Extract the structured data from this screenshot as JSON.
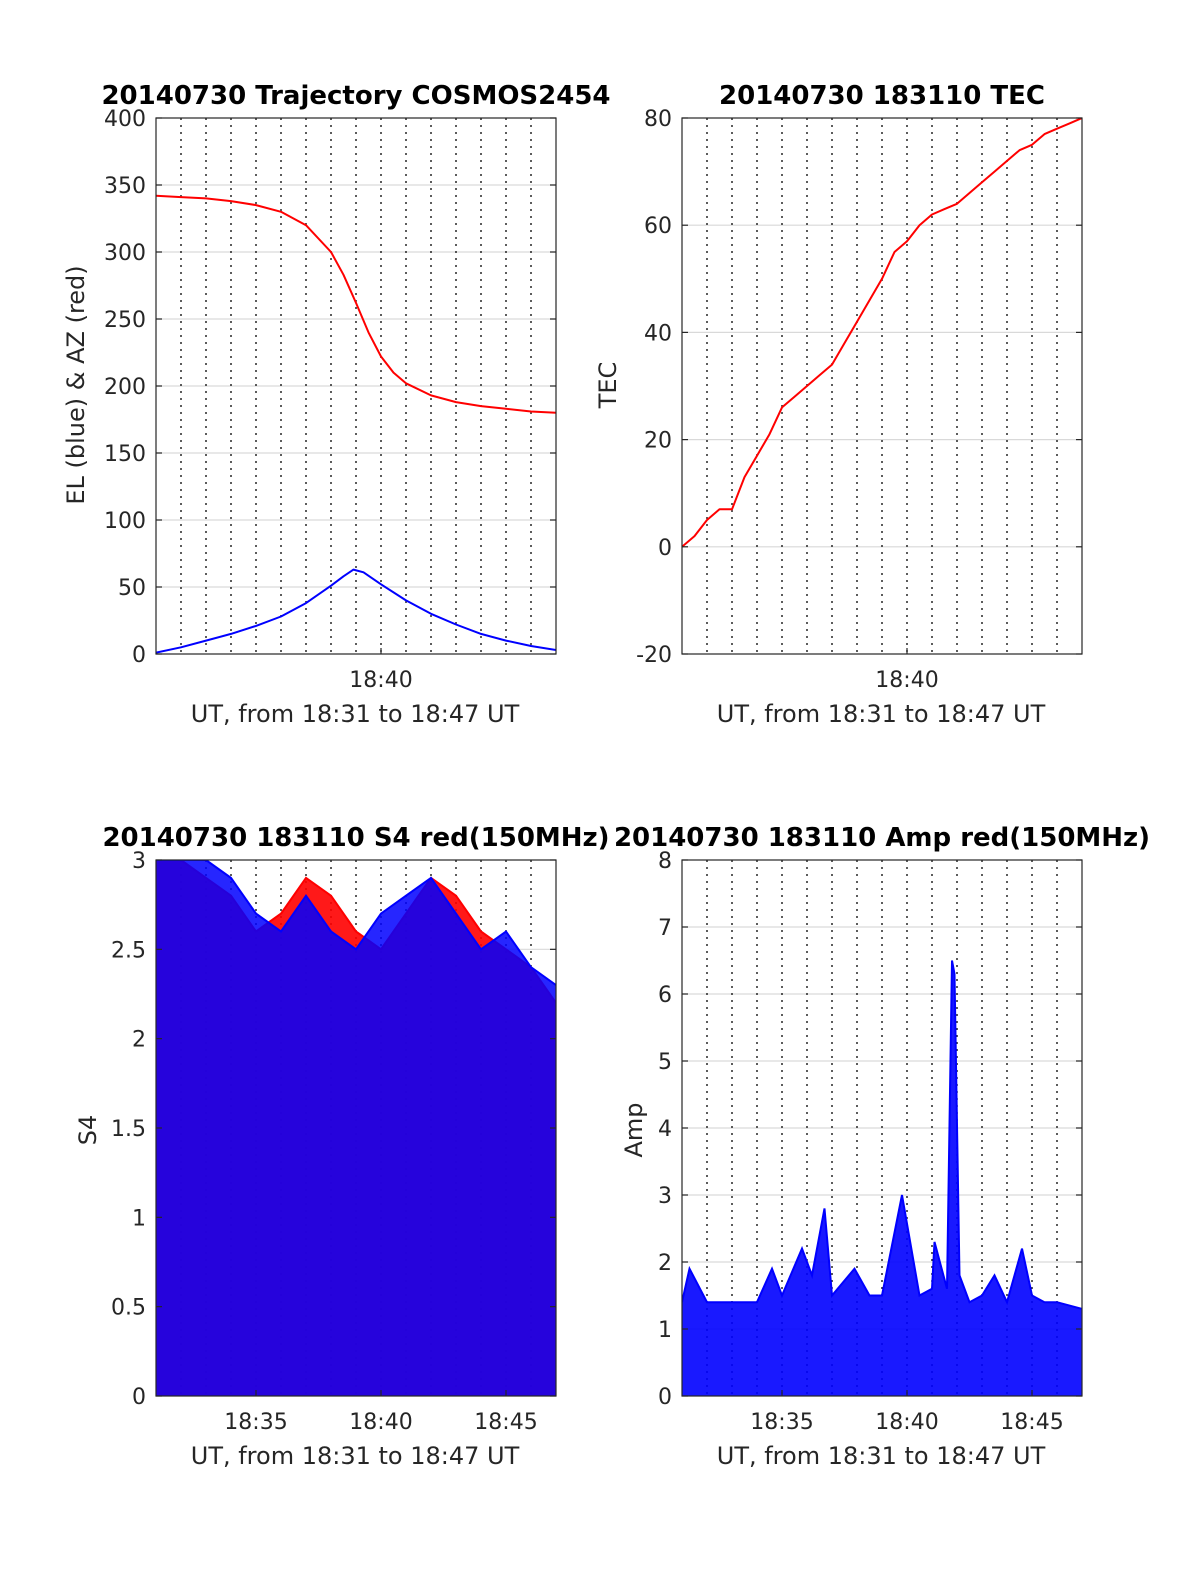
{
  "chart_data": [
    {
      "type": "line",
      "title": "20140730 Trajectory COSMOS2454",
      "xlabel": "UT, from 18:31 to 18:47 UT",
      "ylabel": "EL (blue) & AZ (red)",
      "xlim": [
        31.0,
        47.0
      ],
      "ylim": [
        0,
        400
      ],
      "yticks": [
        0,
        50,
        100,
        150,
        200,
        250,
        300,
        350,
        400
      ],
      "xticks": [
        {
          "value": 40,
          "label": "18:40"
        }
      ],
      "vgrid_minutes": [
        32,
        33,
        34,
        35,
        36,
        37,
        38,
        39,
        40,
        41,
        42,
        43,
        44,
        45,
        46
      ],
      "grid": true,
      "series": [
        {
          "name": "AZ",
          "color": "#ff0000",
          "x": [
            31.0,
            32.0,
            33.0,
            34.0,
            35.0,
            36.0,
            37.0,
            38.0,
            38.5,
            39.0,
            39.5,
            40.0,
            40.5,
            41.0,
            42.0,
            43.0,
            44.0,
            45.0,
            46.0,
            47.0
          ],
          "y": [
            342,
            341,
            340,
            338,
            335,
            330,
            320,
            300,
            283,
            262,
            240,
            222,
            210,
            202,
            193,
            188,
            185,
            183,
            181,
            180
          ]
        },
        {
          "name": "EL",
          "color": "#0000ff",
          "x": [
            31.0,
            32.0,
            33.0,
            34.0,
            35.0,
            36.0,
            37.0,
            38.0,
            38.5,
            38.9,
            39.3,
            40.0,
            41.0,
            42.0,
            43.0,
            44.0,
            45.0,
            46.0,
            47.0
          ],
          "y": [
            1,
            5,
            10,
            15,
            21,
            28,
            38,
            51,
            58,
            63,
            61,
            52,
            40,
            30,
            22,
            15,
            10,
            6,
            3
          ]
        }
      ]
    },
    {
      "type": "line",
      "title": "20140730 183110 TEC",
      "xlabel": "UT, from 18:31 to 18:47 UT",
      "ylabel": "TEC",
      "xlim": [
        31.0,
        47.0
      ],
      "ylim": [
        -20,
        80
      ],
      "yticks": [
        -20,
        0,
        20,
        40,
        60,
        80
      ],
      "xticks": [
        {
          "value": 40,
          "label": "18:40"
        }
      ],
      "vgrid_minutes": [
        32,
        33,
        34,
        35,
        36,
        37,
        38,
        39,
        40,
        41,
        42,
        43,
        44,
        45,
        46
      ],
      "grid": true,
      "series": [
        {
          "name": "TEC",
          "color": "#ff0000",
          "x": [
            31.0,
            31.5,
            32.0,
            32.5,
            33.0,
            33.5,
            34.0,
            34.5,
            35.0,
            35.5,
            36.0,
            36.5,
            37.0,
            37.5,
            38.0,
            38.5,
            39.0,
            39.5,
            40.0,
            40.5,
            41.0,
            41.5,
            42.0,
            42.5,
            43.0,
            43.5,
            44.0,
            44.5,
            45.0,
            45.5,
            46.0,
            46.5,
            47.0
          ],
          "y": [
            0,
            2,
            5,
            7,
            7,
            13,
            17,
            21,
            26,
            28,
            30,
            32,
            34,
            38,
            42,
            46,
            50,
            55,
            57,
            60,
            62,
            63,
            64,
            66,
            68,
            70,
            72,
            74,
            75,
            77,
            78,
            79,
            80
          ]
        }
      ]
    },
    {
      "type": "line",
      "title": "20140730 183110 S4 red(150MHz)",
      "xlabel": "UT, from 18:31 to 18:47 UT",
      "ylabel": "S4",
      "xlim": [
        31.0,
        47.0
      ],
      "ylim": [
        0,
        3
      ],
      "yticks": [
        0,
        0.5,
        1,
        1.5,
        2,
        2.5,
        3
      ],
      "xticks": [
        {
          "value": 35,
          "label": "18:35"
        },
        {
          "value": 40,
          "label": "18:40"
        },
        {
          "value": 45,
          "label": "18:45"
        }
      ],
      "vgrid_minutes": [
        32,
        33,
        34,
        35,
        36,
        37,
        38,
        39,
        40,
        41,
        42,
        43,
        44,
        45,
        46
      ],
      "grid": true,
      "series": [
        {
          "name": "S4 red",
          "color": "#ff0000",
          "x": [
            31.0,
            32.0,
            33.0,
            34.0,
            35.0,
            36.0,
            37.0,
            38.0,
            39.0,
            40.0,
            41.0,
            42.0,
            43.0,
            44.0,
            45.0,
            46.0,
            47.0
          ],
          "y": [
            3.0,
            3.0,
            2.9,
            2.8,
            2.6,
            2.7,
            2.9,
            2.8,
            2.6,
            2.5,
            2.7,
            2.9,
            2.8,
            2.6,
            2.5,
            2.4,
            2.2
          ]
        },
        {
          "name": "S4 blue",
          "color": "#0000ff",
          "x": [
            31.0,
            32.0,
            33.0,
            34.0,
            35.0,
            36.0,
            37.0,
            38.0,
            39.0,
            40.0,
            41.0,
            42.0,
            43.0,
            44.0,
            45.0,
            46.0,
            47.0
          ],
          "y": [
            3.0,
            3.0,
            3.0,
            2.9,
            2.7,
            2.6,
            2.8,
            2.6,
            2.5,
            2.7,
            2.8,
            2.9,
            2.7,
            2.5,
            2.6,
            2.4,
            2.3
          ]
        }
      ]
    },
    {
      "type": "line",
      "title": "20140730 183110 Amp red(150MHz)",
      "xlabel": "UT, from 18:31 to 18:47 UT",
      "ylabel": "Amp",
      "xlim": [
        31.0,
        47.0
      ],
      "ylim": [
        0,
        8
      ],
      "yticks": [
        0,
        1,
        2,
        3,
        4,
        5,
        6,
        7,
        8
      ],
      "xticks": [
        {
          "value": 35,
          "label": "18:35"
        },
        {
          "value": 40,
          "label": "18:40"
        },
        {
          "value": 45,
          "label": "18:45"
        }
      ],
      "vgrid_minutes": [
        32,
        33,
        34,
        35,
        36,
        37,
        38,
        39,
        40,
        41,
        42,
        43,
        44,
        45,
        46
      ],
      "grid": true,
      "series": [
        {
          "name": "Amp",
          "color": "#0000ff",
          "x": [
            31.0,
            31.3,
            32.0,
            33.0,
            34.0,
            34.6,
            35.0,
            35.8,
            36.2,
            36.7,
            37.0,
            37.9,
            38.5,
            39.0,
            39.8,
            40.5,
            41.0,
            41.1,
            41.6,
            41.8,
            41.9,
            42.1,
            42.5,
            43.0,
            43.5,
            44.0,
            44.6,
            45.0,
            45.5,
            46.0,
            47.0
          ],
          "y": [
            1.4,
            1.9,
            1.4,
            1.4,
            1.4,
            1.9,
            1.5,
            2.2,
            1.8,
            2.8,
            1.5,
            1.9,
            1.5,
            1.5,
            3.0,
            1.5,
            1.6,
            2.3,
            1.6,
            6.5,
            6.3,
            1.8,
            1.4,
            1.5,
            1.8,
            1.4,
            2.2,
            1.5,
            1.4,
            1.4,
            1.3
          ]
        }
      ]
    }
  ]
}
